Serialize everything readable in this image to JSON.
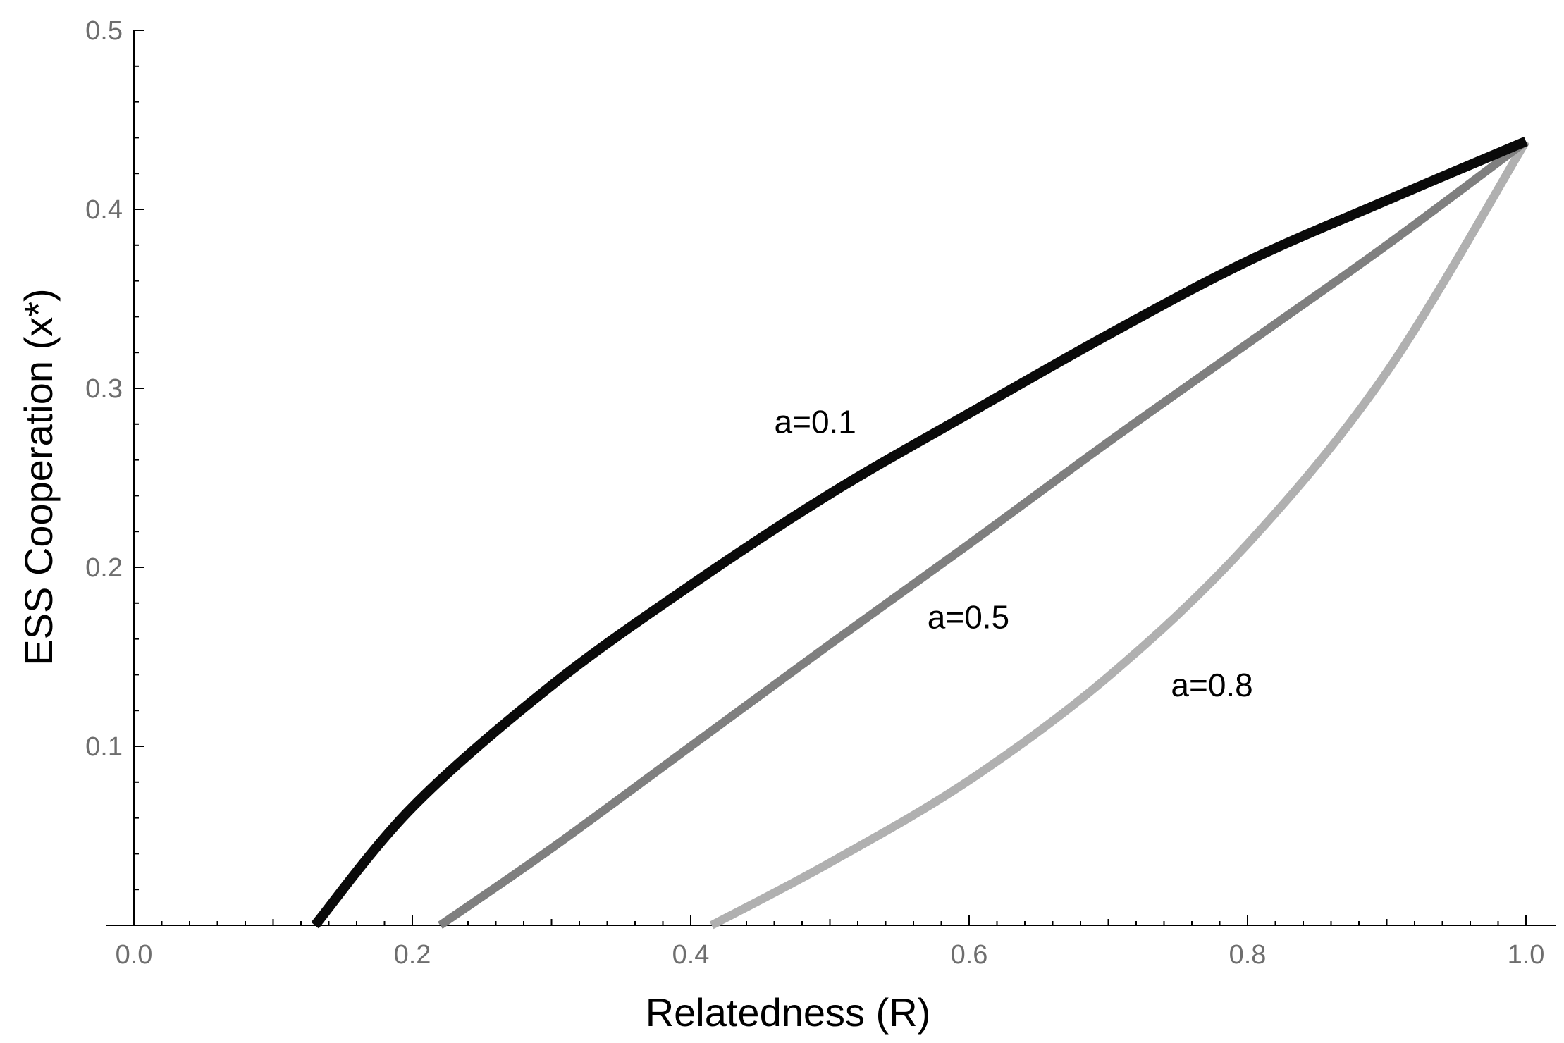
{
  "chart_data": {
    "type": "line",
    "title": "",
    "xlabel": "Relatedness (R)",
    "ylabel": "ESS Cooperation (x*)",
    "xlim": [
      0,
      1.02
    ],
    "ylim": [
      0,
      0.5
    ],
    "x_ticks": [
      0.0,
      0.2,
      0.4,
      0.6,
      0.8,
      1.0
    ],
    "x_tick_labels": [
      "0.0",
      "0.2",
      "0.4",
      "0.6",
      "0.8",
      "1.0"
    ],
    "y_ticks": [
      0.1,
      0.2,
      0.3,
      0.4,
      0.5
    ],
    "y_tick_labels": [
      "0.1",
      "0.2",
      "0.3",
      "0.4",
      "0.5"
    ],
    "grid": false,
    "legend": "none",
    "series": [
      {
        "name": "a=0.1",
        "color": "#0a0a0a",
        "x": [
          0.13,
          0.2,
          0.3,
          0.4,
          0.5,
          0.6,
          0.7,
          0.8,
          0.9,
          1.0
        ],
        "y": [
          0.0,
          0.066,
          0.134,
          0.19,
          0.241,
          0.286,
          0.33,
          0.371,
          0.405,
          0.438
        ]
      },
      {
        "name": "a=0.5",
        "color": "#7f7f7f",
        "x": [
          0.22,
          0.3,
          0.4,
          0.5,
          0.6,
          0.7,
          0.8,
          0.9,
          1.0
        ],
        "y": [
          0.0,
          0.043,
          0.1,
          0.157,
          0.213,
          0.27,
          0.325,
          0.38,
          0.438
        ]
      },
      {
        "name": "a=0.8",
        "color": "#b0b0b0",
        "x": [
          0.415,
          0.5,
          0.6,
          0.7,
          0.8,
          0.9,
          1.0
        ],
        "y": [
          0.0,
          0.035,
          0.081,
          0.139,
          0.213,
          0.309,
          0.438
        ]
      }
    ],
    "annotations": [
      {
        "text": "a=0.1",
        "x": 0.46,
        "y": 0.275
      },
      {
        "text": "a=0.5",
        "x": 0.57,
        "y": 0.166
      },
      {
        "text": "a=0.8",
        "x": 0.745,
        "y": 0.128
      }
    ]
  }
}
